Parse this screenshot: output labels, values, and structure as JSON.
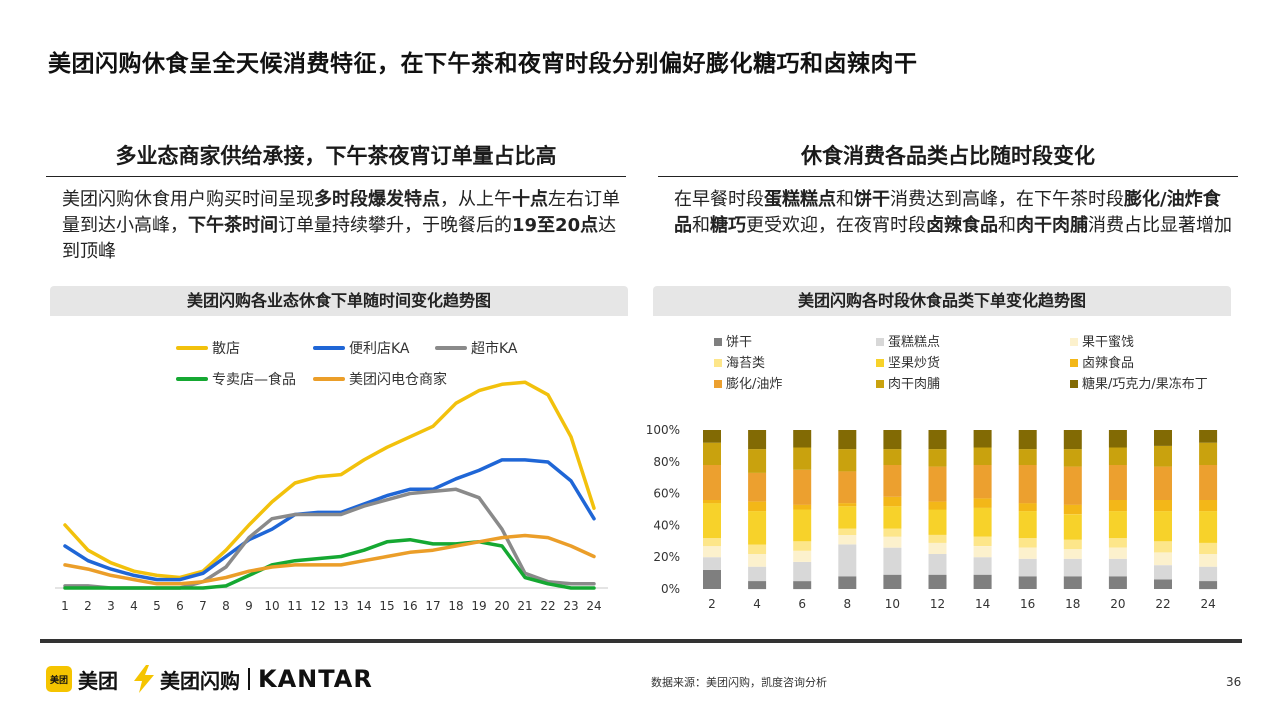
{
  "title": "美团闪购休食呈全天候消费特征，在下午茶和夜宵时段分别偏好膨化糖巧和卤辣肉干",
  "left": {
    "section_title": "多业态商家供给承接，下午茶夜宵订单量占比高",
    "body": [
      {
        "t": "美团闪购休食用户购买时间呈现",
        "b": false
      },
      {
        "t": "多时段爆发特点",
        "b": true
      },
      {
        "t": "，从上午",
        "b": false
      },
      {
        "t": "十点",
        "b": true
      },
      {
        "t": "左右订单量到达小高峰，",
        "b": false
      },
      {
        "t": "下午茶时间",
        "b": true
      },
      {
        "t": "订单量持续攀升，于晚餐后的",
        "b": false
      },
      {
        "t": "19至20点",
        "b": true
      },
      {
        "t": "达到顶峰",
        "b": false
      }
    ],
    "chart_title": "美团闪购各业态休食下单随时间变化趋势图"
  },
  "right": {
    "section_title": "休食消费各品类占比随时段变化",
    "body": [
      {
        "t": "在早餐时段",
        "b": false
      },
      {
        "t": "蛋糕糕点",
        "b": true
      },
      {
        "t": "和",
        "b": false
      },
      {
        "t": "饼干",
        "b": true
      },
      {
        "t": "消费达到高峰，在下午茶时段",
        "b": false
      },
      {
        "t": "膨化/油炸食品",
        "b": true
      },
      {
        "t": "和",
        "b": false
      },
      {
        "t": "糖巧",
        "b": true
      },
      {
        "t": "更受欢迎，在夜宵时段",
        "b": false
      },
      {
        "t": "卤辣食品",
        "b": true
      },
      {
        "t": "和",
        "b": false
      },
      {
        "t": "肉干肉脯",
        "b": true
      },
      {
        "t": "消费占比显著增加",
        "b": false
      }
    ],
    "chart_title": "美团闪购各时段休食品类下单变化趋势图"
  },
  "footer": {
    "logo_meituan_badge": "美团",
    "logo_meituan": "美团",
    "logo_shangou": "美团闪购",
    "logo_kantar": "KANTAR",
    "source": "数据来源：美团闪购，凯度咨询分析",
    "page": "36"
  },
  "chart_data": [
    {
      "type": "line",
      "title": "美团闪购各业态休食下单随时间变化趋势图",
      "x": [
        1,
        2,
        3,
        4,
        5,
        6,
        7,
        8,
        9,
        10,
        11,
        12,
        13,
        14,
        15,
        16,
        17,
        18,
        19,
        20,
        21,
        22,
        23,
        24
      ],
      "ylim": [
        0,
        100
      ],
      "grid": false,
      "legend": "top",
      "series": [
        {
          "name": "散店",
          "color": "#f2c10c",
          "values": [
            30,
            18,
            12,
            8,
            6,
            5,
            8,
            18,
            30,
            41,
            50,
            53,
            54,
            61,
            67,
            72,
            77,
            88,
            94,
            97,
            98,
            92,
            72,
            38
          ]
        },
        {
          "name": "便利店KA",
          "color": "#1f66d6",
          "values": [
            20,
            13,
            9,
            6,
            4,
            4,
            7,
            15,
            23,
            28,
            35,
            36,
            36,
            40,
            44,
            47,
            47,
            52,
            56,
            61,
            61,
            60,
            51,
            33
          ]
        },
        {
          "name": "超市KA",
          "color": "#8a8a8a",
          "values": [
            1,
            1,
            0,
            0,
            0,
            0,
            3,
            10,
            24,
            33,
            35,
            35,
            35,
            39,
            42,
            45,
            46,
            47,
            43,
            28,
            7,
            3,
            2,
            2
          ]
        },
        {
          "name": "专卖店—食品",
          "color": "#15a832",
          "values": [
            0,
            0,
            0,
            0,
            0,
            0,
            0,
            1,
            6,
            11,
            13,
            14,
            15,
            18,
            22,
            23,
            21,
            21,
            22,
            20,
            5,
            2,
            0,
            0
          ]
        },
        {
          "name": "美团闪电仓商家",
          "color": "#eb9e29",
          "values": [
            11,
            9,
            6,
            4,
            2,
            2,
            3,
            5,
            8,
            10,
            11,
            11,
            11,
            13,
            15,
            17,
            18,
            20,
            22,
            24,
            25,
            24,
            20,
            15
          ]
        }
      ]
    },
    {
      "type": "bar",
      "title": "美团闪购各时段休食品类下单变化趋势图",
      "stacked": true,
      "categories": [
        2,
        4,
        6,
        8,
        10,
        12,
        14,
        16,
        18,
        20,
        22,
        24
      ],
      "yticks": [
        "0%",
        "20%",
        "40%",
        "60%",
        "80%",
        "100%"
      ],
      "ylim": [
        0,
        100
      ],
      "legend": "top",
      "series": [
        {
          "name": "饼干",
          "color": "#7f7f7f",
          "values": [
            12,
            5,
            5,
            8,
            9,
            9,
            9,
            8,
            8,
            8,
            6,
            5
          ]
        },
        {
          "name": "蛋糕糕点",
          "color": "#d8d8d8",
          "values": [
            8,
            9,
            12,
            20,
            17,
            13,
            11,
            11,
            11,
            11,
            9,
            9
          ]
        },
        {
          "name": "果干蜜饯",
          "color": "#fcf1cd",
          "values": [
            7,
            8,
            7,
            6,
            7,
            7,
            7,
            7,
            6,
            7,
            8,
            8
          ]
        },
        {
          "name": "海苔类",
          "color": "#fde68a",
          "values": [
            5,
            6,
            6,
            4,
            5,
            5,
            6,
            6,
            6,
            6,
            7,
            7
          ]
        },
        {
          "name": "坚果炒货",
          "color": "#f7d22a",
          "values": [
            22,
            21,
            20,
            14,
            14,
            16,
            18,
            17,
            16,
            17,
            19,
            20
          ]
        },
        {
          "name": "卤辣食品",
          "color": "#f3b718",
          "values": [
            2,
            6,
            3,
            2,
            6,
            5,
            6,
            5,
            6,
            7,
            7,
            7
          ]
        },
        {
          "name": "膨化/油炸",
          "color": "#eca02f",
          "values": [
            22,
            18,
            22,
            20,
            20,
            22,
            21,
            24,
            24,
            22,
            21,
            22
          ]
        },
        {
          "name": "肉干肉脯",
          "color": "#c9a20e",
          "values": [
            14,
            15,
            14,
            14,
            10,
            11,
            11,
            10,
            11,
            11,
            13,
            14
          ]
        },
        {
          "name": "糖果/巧克力/果冻布丁",
          "color": "#826a04",
          "values": [
            8,
            12,
            11,
            12,
            12,
            12,
            11,
            12,
            12,
            11,
            10,
            8
          ]
        }
      ]
    }
  ]
}
